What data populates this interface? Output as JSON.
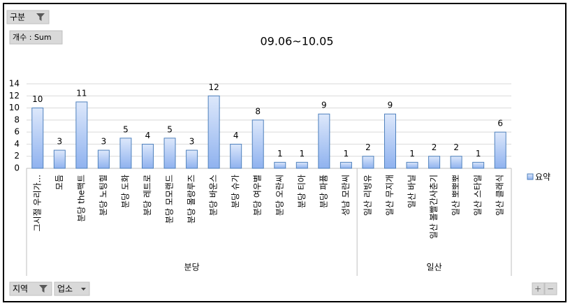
{
  "chart_data": {
    "type": "bar",
    "title": "09.06~10.05",
    "buttons": {
      "category_filter": "구분",
      "value_field": "개수 : Sum",
      "region_filter": "지역",
      "venue_filter": "업소",
      "expand": "+",
      "collapse": "−"
    },
    "legend": "요약",
    "groups": [
      {
        "label": "분당",
        "categories": [
          "그시절 우리가...",
          "모듬",
          "분당 the팩트",
          "분당 노팅힐",
          "분당 도화",
          "분당 레트로",
          "분당 모모랜드",
          "분당 몰랑루즈",
          "분당 바운스",
          "분당 슈가",
          "분당 여우별",
          "분당 오란씨",
          "분당 티아",
          "분당 파퓸",
          "성남 모란씨"
        ],
        "values": [
          10,
          3,
          11,
          3,
          5,
          4,
          5,
          3,
          12,
          4,
          8,
          1,
          1,
          9,
          1
        ]
      },
      {
        "label": "일산",
        "categories": [
          "일산 리빙유",
          "일산 무지개",
          "일산 바닐",
          "일산 볼빨간사춘기",
          "일산 뽀뽀뽀",
          "일산 스타일",
          "일산 클래식"
        ],
        "values": [
          2,
          9,
          1,
          2,
          2,
          1,
          6
        ]
      }
    ],
    "ylim": [
      0,
      14
    ],
    "yticks": [
      0,
      2,
      4,
      6,
      8,
      10,
      12,
      14
    ],
    "grid": true,
    "color": "#4f81bd"
  }
}
